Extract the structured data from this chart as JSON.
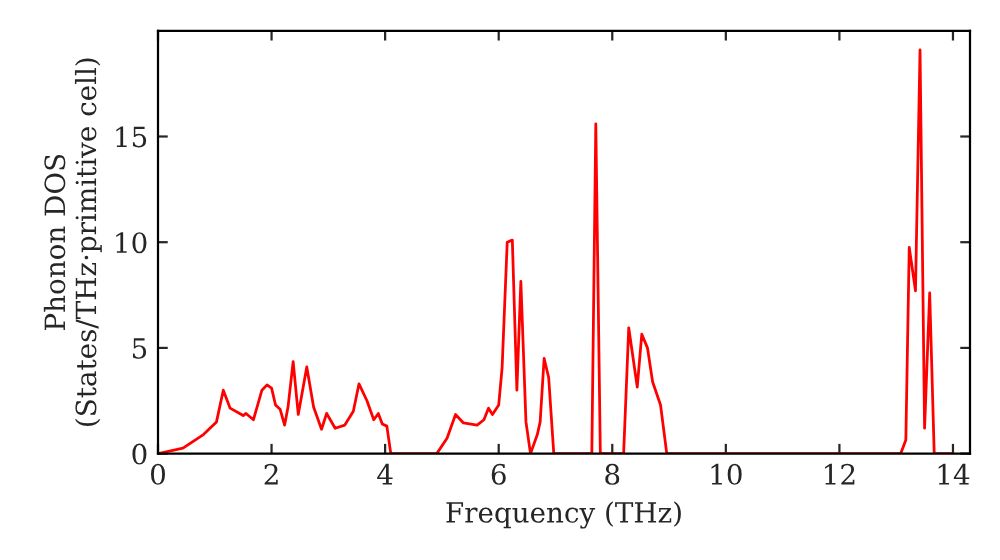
{
  "chart_data": {
    "type": "line",
    "xlabel": "Frequency (THz)",
    "ylabel": "Phonon DOS\n(States/THz·primitive cell)",
    "xlim": [
      0,
      14.3
    ],
    "ylim": [
      0,
      20
    ],
    "xticks": [
      0,
      2,
      4,
      6,
      8,
      10,
      12,
      14
    ],
    "yticks": [
      0,
      5,
      10,
      15
    ],
    "grid": false,
    "marker": "none",
    "line_style": "solid",
    "series": [
      {
        "color": "#ff0000",
        "x": [
          0,
          0.44,
          0.8,
          1.03,
          1.15,
          1.27,
          1.5,
          1.55,
          1.68,
          1.83,
          1.92,
          2.0,
          2.07,
          2.15,
          2.23,
          2.29,
          2.38,
          2.47,
          2.62,
          2.74,
          2.88,
          2.97,
          3.12,
          3.29,
          3.44,
          3.54,
          3.68,
          3.8,
          3.88,
          3.95,
          4.03,
          4.1,
          4.91,
          5.09,
          5.24,
          5.38,
          5.62,
          5.74,
          5.82,
          5.89,
          6.0,
          6.06,
          6.15,
          6.24,
          6.32,
          6.39,
          6.48,
          6.56,
          6.68,
          6.73,
          6.8,
          6.88,
          6.97,
          7.64,
          7.71,
          7.79,
          8.2,
          8.29,
          8.44,
          8.52,
          8.62,
          8.71,
          8.85,
          8.96,
          13.08,
          13.17,
          13.23,
          13.34,
          13.42,
          13.5,
          13.59,
          13.67,
          14.0
        ],
        "values": [
          0,
          0.26,
          0.9,
          1.5,
          3.0,
          2.15,
          1.8,
          1.9,
          1.6,
          3.0,
          3.25,
          3.1,
          2.3,
          2.1,
          1.35,
          2.2,
          4.35,
          1.85,
          4.1,
          2.2,
          1.15,
          1.9,
          1.2,
          1.35,
          2.0,
          3.3,
          2.5,
          1.6,
          1.9,
          1.4,
          1.3,
          0,
          0,
          0.73,
          1.85,
          1.45,
          1.35,
          1.6,
          2.15,
          1.85,
          2.3,
          4.05,
          10.0,
          10.1,
          3.0,
          8.15,
          1.5,
          0,
          0.9,
          1.5,
          4.5,
          3.6,
          0,
          0,
          15.6,
          0,
          0,
          5.95,
          3.15,
          5.65,
          5.0,
          3.4,
          2.3,
          0,
          0,
          0.64,
          9.75,
          7.7,
          19.1,
          1.2,
          7.6,
          0,
          0
        ]
      }
    ]
  }
}
